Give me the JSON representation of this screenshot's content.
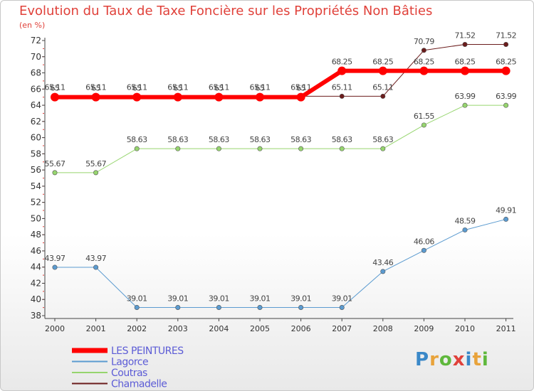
{
  "chart_data": {
    "type": "line",
    "title": "Evolution du Taux de Taxe Foncière sur les Propriétés Non Bâties",
    "subtitle": "(en %)",
    "xlabel": "",
    "ylabel": "(en %)",
    "categories": [
      "2000",
      "2001",
      "2002",
      "2003",
      "2004",
      "2005",
      "2006",
      "2007",
      "2008",
      "2009",
      "2010",
      "2011"
    ],
    "ylim": [
      38,
      72
    ],
    "yticks": [
      38,
      40,
      42,
      44,
      46,
      48,
      50,
      52,
      54,
      56,
      58,
      60,
      62,
      64,
      66,
      68,
      70,
      72
    ],
    "grid": false,
    "legend_position": "bottom-left",
    "series": [
      {
        "name": "Chamadelle",
        "color": "#6b1c1c",
        "width": 1,
        "values": [
          65.11,
          65.11,
          65.11,
          65.11,
          65.11,
          65.11,
          65.11,
          65.11,
          65.11,
          70.79,
          71.52,
          71.52
        ],
        "labels": [
          "65.11",
          "65.11",
          "65.11",
          "65.11",
          "65.11",
          "65.11",
          "65.11",
          "65.11",
          "65.11",
          "70.79",
          "71.52",
          "71.52"
        ]
      },
      {
        "name": "Coutras",
        "color": "#96d56e",
        "width": 1,
        "values": [
          55.67,
          55.67,
          58.63,
          58.63,
          58.63,
          58.63,
          58.63,
          58.63,
          58.63,
          61.55,
          63.99,
          63.99
        ],
        "labels": [
          "55.67",
          "55.67",
          "58.63",
          "58.63",
          "58.63",
          "58.63",
          "58.63",
          "58.63",
          "58.63",
          "61.55",
          "63.99",
          "63.99"
        ]
      },
      {
        "name": "Lagorce",
        "color": "#5b9bd0",
        "width": 1,
        "values": [
          43.97,
          43.97,
          39.01,
          39.01,
          39.01,
          39.01,
          39.01,
          39.01,
          43.46,
          46.06,
          48.59,
          49.91
        ],
        "labels": [
          "43.97",
          "43.97",
          "39.01",
          "39.01",
          "39.01",
          "39.01",
          "39.01",
          "39.01",
          "43.46",
          "46.06",
          "48.59",
          "49.91"
        ]
      },
      {
        "name": "LES PEINTURES",
        "color": "#ff0000",
        "width": 6,
        "values": [
          65,
          65,
          65,
          65,
          65,
          65,
          65,
          68.25,
          68.25,
          68.25,
          68.25,
          68.25
        ],
        "labels": [
          "65",
          "65",
          "65",
          "65",
          "65",
          "65",
          "65",
          "68.25",
          "68.25",
          "68.25",
          "68.25",
          "68.25"
        ]
      }
    ],
    "legend": [
      "LES PEINTURES",
      "Lagorce",
      "Coutras",
      "Chamadelle"
    ]
  },
  "logo": {
    "text": "Proxiti",
    "letters": [
      "P",
      "r",
      "o",
      "x",
      "i",
      "t",
      "i"
    ],
    "colors": [
      "#3a88c8",
      "#e8a33b",
      "#5fb83c",
      "#e0413a",
      "#3a88c8",
      "#e8a33b",
      "#5fb83c"
    ]
  }
}
